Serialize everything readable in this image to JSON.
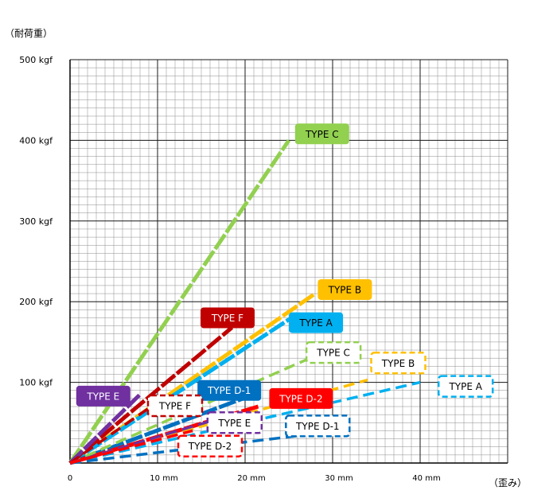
{
  "chart_data": {
    "type": "line",
    "ylabel": "（耐荷重）",
    "xlabel": "（歪み）",
    "xlim": [
      0,
      50
    ],
    "ylim": [
      0,
      500
    ],
    "x_ticks": [
      {
        "value": 0,
        "label": "0"
      },
      {
        "value": 10,
        "label": "10 mm"
      },
      {
        "value": 20,
        "label": "20 mm"
      },
      {
        "value": 30,
        "label": "30 mm"
      },
      {
        "value": 40,
        "label": "40 mm"
      }
    ],
    "y_ticks": [
      {
        "value": 100,
        "label": "100 kgf"
      },
      {
        "value": 200,
        "label": "200 kgf"
      },
      {
        "value": 300,
        "label": "300 kgf"
      },
      {
        "value": 400,
        "label": "400 kgf"
      },
      {
        "value": 500,
        "label": "500 kgf"
      }
    ],
    "grid": true,
    "series": [
      {
        "name": "TYPE C",
        "style": "solid",
        "color": "#92d050",
        "x": [
          0,
          25
        ],
        "y": [
          0,
          400
        ]
      },
      {
        "name": "TYPE B",
        "style": "solid",
        "color": "#ffc000",
        "x": [
          0,
          28
        ],
        "y": [
          0,
          210
        ]
      },
      {
        "name": "TYPE A",
        "style": "solid",
        "color": "#00b0f0",
        "x": [
          0,
          26
        ],
        "y": [
          0,
          185
        ]
      },
      {
        "name": "TYPE F",
        "style": "solid",
        "color": "#c00000",
        "x": [
          0,
          18.5
        ],
        "y": [
          0,
          168
        ]
      },
      {
        "name": "TYPE E",
        "style": "solid",
        "color": "#7030a0",
        "x": [
          0,
          8
        ],
        "y": [
          0,
          85
        ]
      },
      {
        "name": "TYPE D-1",
        "style": "solid",
        "color": "#0070c0",
        "x": [
          0,
          21
        ],
        "y": [
          0,
          85
        ]
      },
      {
        "name": "TYPE D-2",
        "style": "solid",
        "color": "#ff0000",
        "x": [
          0,
          21.5
        ],
        "y": [
          0,
          70
        ]
      },
      {
        "name": "TYPE C",
        "style": "dashed",
        "color": "#92d050",
        "x": [
          0,
          27
        ],
        "y": [
          0,
          128
        ]
      },
      {
        "name": "TYPE B",
        "style": "dashed",
        "color": "#ffc000",
        "x": [
          0,
          34
        ],
        "y": [
          0,
          103
        ]
      },
      {
        "name": "TYPE A",
        "style": "dashed",
        "color": "#00b0f0",
        "x": [
          0,
          40
        ],
        "y": [
          0,
          100
        ]
      },
      {
        "name": "TYPE F",
        "style": "dashed",
        "color": "#c00000",
        "x": [
          0,
          9
        ],
        "y": [
          0,
          68
        ]
      },
      {
        "name": "TYPE E",
        "style": "dashed",
        "color": "#7030a0",
        "x": [
          0,
          17
        ],
        "y": [
          0,
          55
        ]
      },
      {
        "name": "TYPE D-1",
        "style": "dashed",
        "color": "#0070c0",
        "x": [
          0,
          27
        ],
        "y": [
          0,
          35
        ]
      },
      {
        "name": "TYPE D-2",
        "style": "dashed",
        "color": "#ff0000",
        "x": [
          0,
          14
        ],
        "y": [
          0,
          40
        ]
      }
    ],
    "annotations": [
      {
        "text": "TYPE C",
        "style": "solid",
        "color": "#92d050",
        "text_color": "#000000",
        "x": 28.8,
        "y": 408
      },
      {
        "text": "TYPE B",
        "style": "solid",
        "color": "#ffc000",
        "text_color": "#000000",
        "x": 31.4,
        "y": 215
      },
      {
        "text": "TYPE A",
        "style": "solid",
        "color": "#00b0f0",
        "text_color": "#000000",
        "x": 28.1,
        "y": 174
      },
      {
        "text": "TYPE F",
        "style": "solid",
        "color": "#c00000",
        "text_color": "#ffffff",
        "x": 18,
        "y": 180
      },
      {
        "text": "TYPE E",
        "style": "solid",
        "color": "#7030a0",
        "text_color": "#ffffff",
        "x": 3.8,
        "y": 83
      },
      {
        "text": "TYPE D-1",
        "style": "solid",
        "color": "#0070c0",
        "text_color": "#ffffff",
        "x": 18.2,
        "y": 90
      },
      {
        "text": "TYPE D-2",
        "style": "solid",
        "color": "#ff0000",
        "text_color": "#ffffff",
        "x": 26.4,
        "y": 80
      },
      {
        "text": "TYPE C",
        "style": "dashed",
        "color": "#92d050",
        "text_color": "#000000",
        "x": 30.1,
        "y": 137
      },
      {
        "text": "TYPE B",
        "style": "dashed",
        "color": "#ffc000",
        "text_color": "#000000",
        "x": 37.5,
        "y": 124
      },
      {
        "text": "TYPE A",
        "style": "dashed",
        "color": "#00b0f0",
        "text_color": "#000000",
        "x": 45.2,
        "y": 95
      },
      {
        "text": "TYPE F",
        "style": "dashed",
        "color": "#c00000",
        "text_color": "#000000",
        "x": 12,
        "y": 71
      },
      {
        "text": "TYPE E",
        "style": "dashed",
        "color": "#7030a0",
        "text_color": "#000000",
        "x": 18.8,
        "y": 50
      },
      {
        "text": "TYPE D-1",
        "style": "dashed",
        "color": "#0070c0",
        "text_color": "#000000",
        "x": 28.3,
        "y": 46
      },
      {
        "text": "TYPE D-2",
        "style": "dashed",
        "color": "#ff0000",
        "text_color": "#000000",
        "x": 16,
        "y": 21
      }
    ]
  }
}
